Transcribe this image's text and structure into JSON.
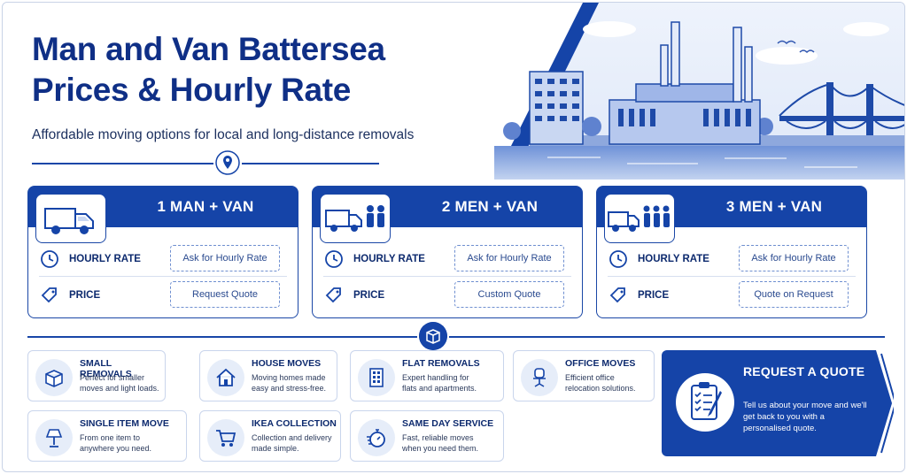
{
  "header": {
    "title_line1": "Man and Van Battersea",
    "title_line2": "Prices & Hourly Rate",
    "subtitle": "Affordable moving options for local and long-distance removals"
  },
  "packages": [
    {
      "title": "1 MAN + VAN",
      "rate_label": "HOURLY RATE",
      "rate_value": "Ask for Hourly Rate",
      "price_label": "PRICE",
      "price_value": "Request Quote",
      "icon": "van-icon"
    },
    {
      "title": "2 MEN + VAN",
      "rate_label": "HOURLY RATE",
      "rate_value": "Ask for Hourly Rate",
      "price_label": "PRICE",
      "price_value": "Custom Quote",
      "icon": "van-two-movers-icon"
    },
    {
      "title": "3 MEN + VAN",
      "rate_label": "HOURLY RATE",
      "rate_value": "Ask for Hourly Rate",
      "price_label": "PRICE",
      "price_value": "Quote on Request",
      "icon": "van-three-movers-icon"
    }
  ],
  "services": [
    {
      "title": "SMALL REMOVALS",
      "desc": "Perfect for smaller moves and light loads.",
      "icon": "box-icon"
    },
    {
      "title": "HOUSE MOVES",
      "desc": "Moving homes made easy and stress-free.",
      "icon": "house-icon"
    },
    {
      "title": "FLAT REMOVALS",
      "desc": "Expert handling for flats and apartments.",
      "icon": "building-icon"
    },
    {
      "title": "OFFICE MOVES",
      "desc": "Efficient office relocation solutions.",
      "icon": "office-chair-icon"
    },
    {
      "title": "SINGLE ITEM MOVE",
      "desc": "From one item to anywhere you need.",
      "icon": "lamp-icon"
    },
    {
      "title": "IKEA COLLECTION",
      "desc": "Collection and delivery made simple.",
      "icon": "shopping-cart-icon"
    },
    {
      "title": "SAME DAY SERVICE",
      "desc": "Fast, reliable moves when you need them.",
      "icon": "stopwatch-icon"
    }
  ],
  "cta": {
    "title": "REQUEST A QUOTE",
    "desc": "Tell us about your move and we'll get back to you with a personalised quote.",
    "icon": "clipboard-checklist-icon"
  },
  "colors": {
    "primary": "#1544a8",
    "navy": "#0f2f86",
    "light": "#e6edf9"
  }
}
